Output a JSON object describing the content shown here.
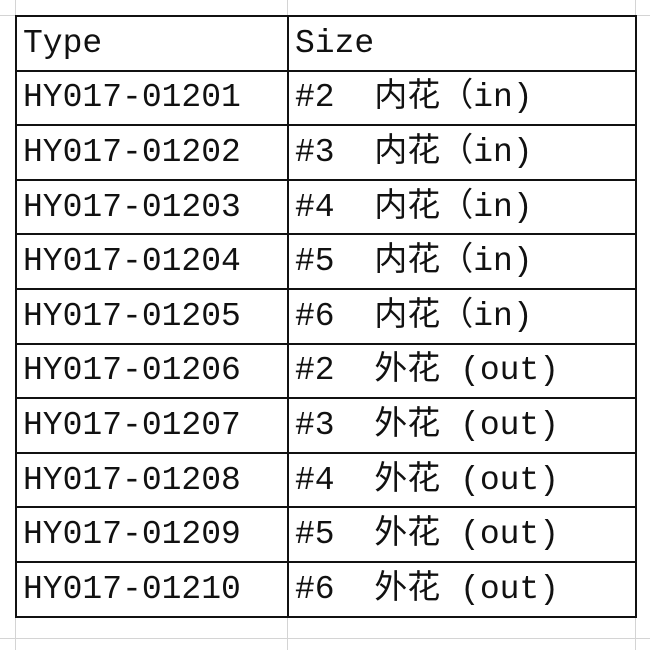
{
  "table": {
    "headers": [
      "Type",
      "Size"
    ],
    "rows": [
      [
        "HY017-01201",
        "#2  内花（in)"
      ],
      [
        "HY017-01202",
        "#3  内花（in)"
      ],
      [
        "HY017-01203",
        "#4  内花（in)"
      ],
      [
        "HY017-01204",
        "#5  内花（in)"
      ],
      [
        "HY017-01205",
        "#6  内花（in)"
      ],
      [
        "HY017-01206",
        "#2  外花 (out)"
      ],
      [
        "HY017-01207",
        "#3  外花 (out)"
      ],
      [
        "HY017-01208",
        "#4  外花 (out)"
      ],
      [
        "HY017-01209",
        "#5  外花 (out)"
      ],
      [
        "HY017-01210",
        "#6  外花 (out)"
      ]
    ]
  }
}
